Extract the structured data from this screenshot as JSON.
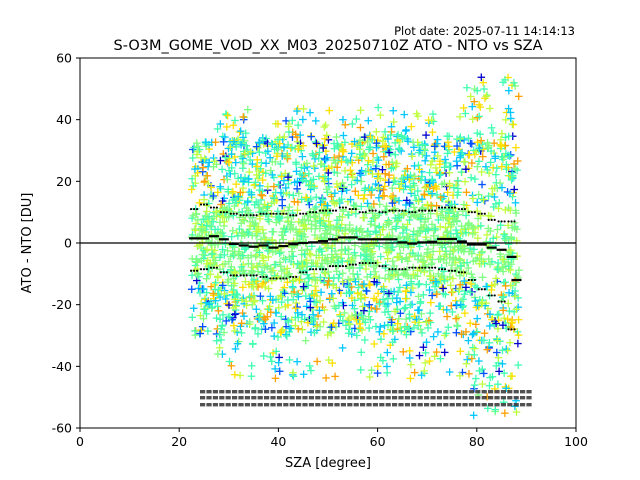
{
  "chart_data": {
    "type": "scatter",
    "title": "S-O3M_GOME_VOD_XX_M03_20250710Z ATO - NTO vs SZA",
    "subtitle": "Plot date: 2025-07-11 14:14:13",
    "xlabel": "SZA [degree]",
    "ylabel": "ATO - NTO [DU]",
    "xlim": [
      0,
      100
    ],
    "ylim": [
      -60,
      60
    ],
    "xticks": [
      "0",
      "20",
      "40",
      "60",
      "80",
      "100"
    ],
    "yticks": [
      "60",
      "40",
      "20",
      "0",
      "-20",
      "-40",
      "-60"
    ],
    "zero_line": 0,
    "grid": false,
    "legend": "none",
    "colors": {
      "mean_line": "#000000",
      "zero_line": "#000000",
      "scatter_colormap": [
        "#0000cd",
        "#0050ff",
        "#00c8ff",
        "#40ffb0",
        "#80ff80",
        "#c0ff40",
        "#ffe000",
        "#ffa000"
      ]
    },
    "scatter": {
      "sza_range": [
        22.5,
        88.5
      ],
      "typical_spread": [
        -30,
        35
      ],
      "outer_extent": [
        -58,
        58
      ]
    },
    "mean": {
      "x": [
        23,
        25,
        27,
        29,
        31,
        33,
        35,
        37,
        39,
        41,
        43,
        45,
        47,
        49,
        51,
        53,
        55,
        57,
        59,
        61,
        63,
        65,
        67,
        69,
        71,
        73,
        75,
        77,
        79,
        81,
        83,
        85,
        87,
        88
      ],
      "y": [
        1.5,
        1.5,
        2.2,
        1.2,
        -0.3,
        -0.8,
        -1.2,
        -0.8,
        -1.5,
        -1,
        -0.4,
        0,
        0.2,
        0.6,
        1.2,
        1.8,
        1.8,
        1.2,
        1.2,
        1.2,
        1.2,
        0.2,
        -0.2,
        0.2,
        0.4,
        1.3,
        1.3,
        0.5,
        -0.5,
        -0.5,
        -1.5,
        -2.2,
        -4.5,
        -12
      ]
    },
    "upper_std": {
      "x": [
        23,
        25,
        27,
        29,
        31,
        33,
        35,
        37,
        39,
        41,
        43,
        45,
        47,
        49,
        51,
        53,
        55,
        57,
        59,
        61,
        63,
        65,
        67,
        69,
        71,
        73,
        75,
        77,
        79,
        81,
        83,
        85,
        87
      ],
      "y": [
        11,
        12.5,
        11.5,
        10,
        9.5,
        9,
        9,
        9.5,
        9.5,
        9.5,
        9,
        9.5,
        10,
        10.5,
        10.5,
        11.5,
        11,
        10,
        10.5,
        10,
        10.5,
        10.5,
        10,
        10.5,
        10.5,
        11.5,
        11.5,
        11,
        10,
        9.5,
        7.5,
        7,
        7
      ]
    },
    "lower_std": {
      "x": [
        23,
        25,
        27,
        29,
        31,
        33,
        35,
        37,
        39,
        41,
        43,
        45,
        47,
        49,
        51,
        53,
        55,
        57,
        59,
        61,
        63,
        65,
        67,
        69,
        71,
        73,
        75,
        77,
        79,
        81,
        83,
        85,
        87
      ],
      "y": [
        -9,
        -8.5,
        -8,
        -9.5,
        -10.5,
        -10.5,
        -10.5,
        -11,
        -11.5,
        -11.5,
        -11,
        -9.5,
        -8.5,
        -8.5,
        -7.5,
        -7.5,
        -7,
        -6.5,
        -6.5,
        -7.5,
        -8.5,
        -8.5,
        -8,
        -8,
        -8,
        -8.5,
        -9,
        -9.5,
        -12,
        -15,
        -17,
        -19,
        -28
      ]
    }
  }
}
